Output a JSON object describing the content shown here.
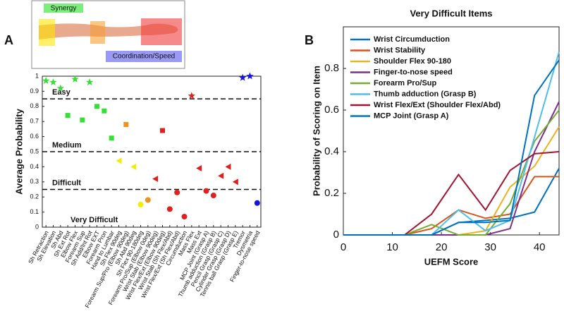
{
  "panel_labels": [
    "A",
    "B"
  ],
  "arm_diagram": {
    "labels": [
      "Synergy",
      "Coordination/Speed"
    ]
  },
  "chart_data": [
    {
      "type": "scatter",
      "ylabel": "Average Probability",
      "categories": [
        "Sh Retraction",
        "Sh Elevation",
        "Sh Abd",
        "Sh Ext Rot",
        "Elbow Flex",
        "Forearm Sup",
        "Sh Add/Int Rot",
        "Elbow EXT",
        "Forearm Pron",
        "Hand to Lumbar",
        "Sh Flex 90deg",
        "Forearm Sup/Pro (Elbow 90deg)",
        "Sh Abd 90deg",
        "Sh Flex 90-180deg",
        "Forearm Pro/Sup (Elbow 0deg)",
        "Wrist Stab (Elbow 90deg)",
        "Wrist Flex/Ext (Elbow 90deg)",
        "Wrist Stab (Sh Flex/Abd)",
        "Wrist Flex/Ext (Sh Flex/Abd)",
        "Circumduction",
        "Mass Flex",
        "Mass Ext",
        "MCP Joint (Grasp A)",
        "Thumb adduction (Grasp B)",
        "Pencil Grasp (Grasp C)",
        "Cylinder Grasp (Grasp D)",
        "Tennis ball Grasp (Grasp E)",
        "Tremor",
        "Dysmetria",
        "Finger-to-nose speed"
      ],
      "values": [
        0.97,
        0.96,
        0.92,
        0.74,
        0.98,
        0.71,
        0.96,
        0.8,
        0.77,
        0.59,
        0.44,
        0.68,
        0.4,
        0.15,
        0.18,
        0.32,
        0.64,
        0.12,
        0.23,
        0.07,
        0.87,
        0.39,
        0.24,
        0.21,
        0.34,
        0.4,
        0.3,
        0.99,
        1.0,
        0.16
      ],
      "markers": [
        "star",
        "star",
        "star",
        "square",
        "star",
        "square",
        "star",
        "square",
        "square",
        "square",
        "triangle",
        "square",
        "triangle",
        "circle",
        "circle",
        "triangle",
        "square",
        "circle",
        "circle",
        "circle",
        "star",
        "triangle",
        "circle",
        "circle",
        "triangle",
        "triangle",
        "triangle",
        "star",
        "star",
        "circle"
      ],
      "colors": [
        "#33e033",
        "#33e033",
        "#33e033",
        "#33e033",
        "#33e033",
        "#33e033",
        "#33e033",
        "#33e033",
        "#33e033",
        "#33e033",
        "#f2ee00",
        "#f0901e",
        "#f2ee00",
        "#f2ee00",
        "#f0901e",
        "#e0201c",
        "#e0201c",
        "#e0201c",
        "#e0201c",
        "#e0201c",
        "#e0201c",
        "#e0201c",
        "#e0201c",
        "#e0201c",
        "#e0201c",
        "#e0201c",
        "#e0201c",
        "#1515e0",
        "#1515e0",
        "#1515e0"
      ],
      "ylim": [
        0,
        1
      ],
      "yticks": [
        0,
        0.1,
        0.2,
        0.3,
        0.4,
        0.5,
        0.6,
        0.7,
        0.8,
        0.9,
        1
      ],
      "hlines": [
        0.85,
        0.5,
        0.25
      ],
      "region_labels": [
        "Easy",
        "Medium",
        "Difficult",
        "Very Difficult"
      ]
    },
    {
      "type": "line",
      "title": "Very Difficult Items",
      "xlabel": "UEFM Score",
      "ylabel": "Probability of Scoring on Item",
      "x": [
        0,
        12.5,
        18,
        23.5,
        29,
        34,
        39,
        44
      ],
      "series": [
        {
          "name": "Wrist Circumduction",
          "color": "#0072bd",
          "values": [
            0,
            0,
            0,
            0.06,
            0.07,
            0.08,
            0.11,
            0.32
          ]
        },
        {
          "name": "Wrist Stability",
          "color": "#d95319",
          "values": [
            0,
            0,
            0.03,
            0.12,
            0.08,
            0.1,
            0.28,
            0.28
          ]
        },
        {
          "name": "Shoulder Flex 90-180",
          "color": "#edb120",
          "values": [
            0,
            0,
            0,
            0,
            0.02,
            0.23,
            0.33,
            0.52
          ]
        },
        {
          "name": "Finger-to-nose speed",
          "color": "#7e2f8e",
          "values": [
            0,
            0,
            0,
            0,
            0,
            0.03,
            0.4,
            0.64
          ]
        },
        {
          "name": "Forearm Pro/Sup",
          "color": "#77ac30",
          "values": [
            0,
            0,
            0.05,
            0,
            0,
            0.15,
            0.45,
            0.6
          ]
        },
        {
          "name": "Thumb adduction (Grasp B)",
          "color": "#4dbeee",
          "values": [
            0,
            0,
            0,
            0.12,
            0.02,
            0.07,
            0.47,
            0.88
          ]
        },
        {
          "name": "Wrist Flex/Ext (Shoulder Flex/Abd)",
          "color": "#a2142f",
          "values": [
            0,
            0,
            0.1,
            0.29,
            0.12,
            0.31,
            0.39,
            0.4
          ]
        },
        {
          "name": "MCP Joint (Grasp A)",
          "color": "#0072bd",
          "values": [
            0,
            0,
            0,
            0.06,
            0.06,
            0.07,
            0.67,
            0.84
          ]
        }
      ],
      "xlim": [
        0,
        44
      ],
      "xticks": [
        0,
        10,
        20,
        30,
        40
      ],
      "ylim": [
        0,
        1
      ],
      "yticks": [
        0,
        0.2,
        0.4,
        0.6,
        0.8
      ]
    }
  ]
}
